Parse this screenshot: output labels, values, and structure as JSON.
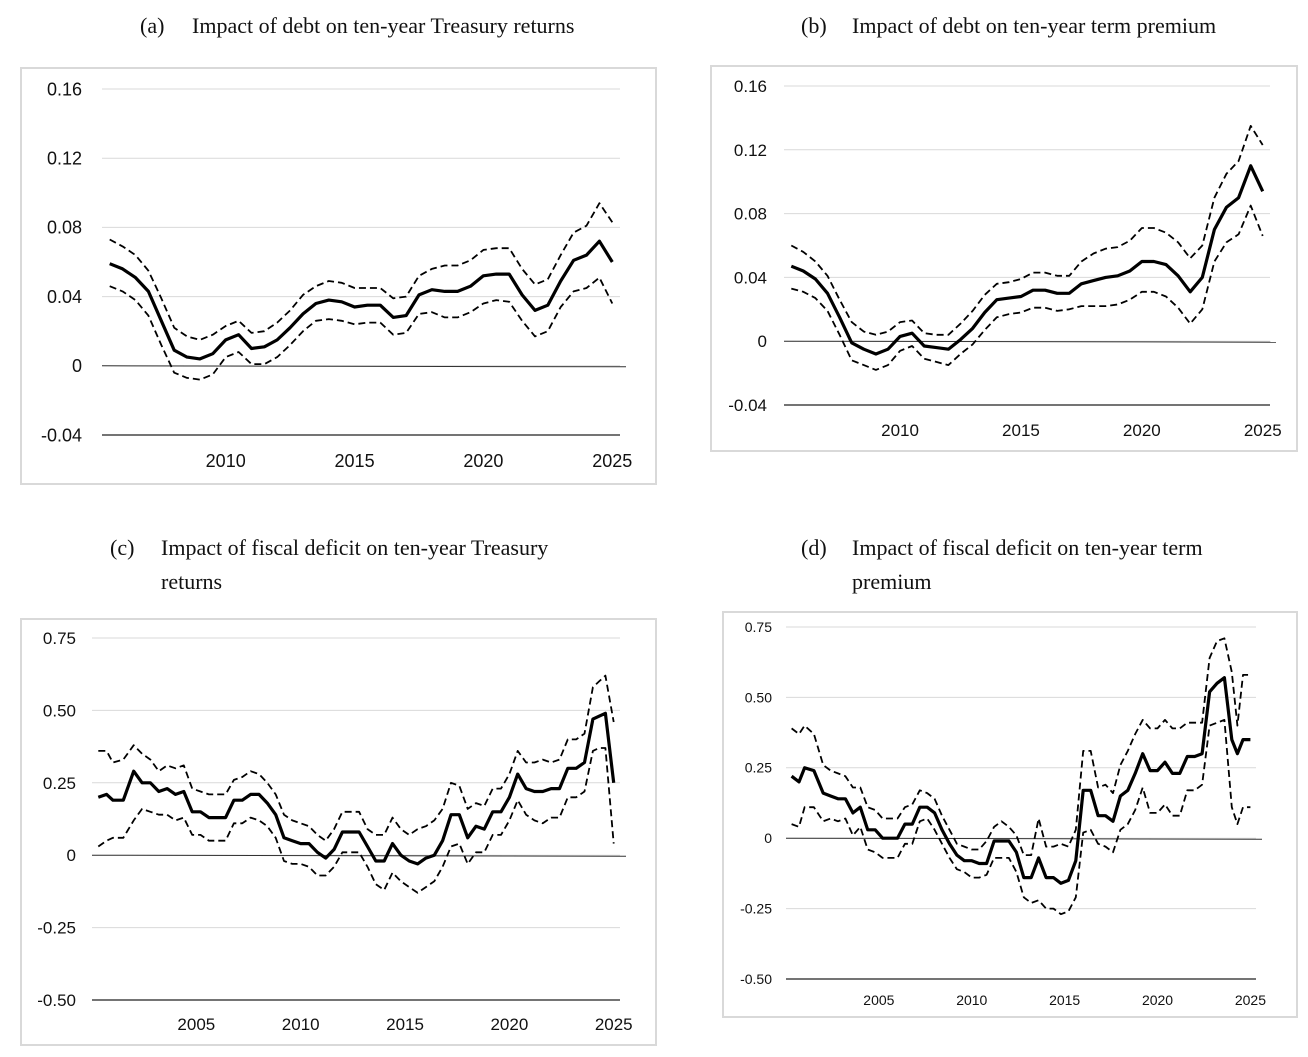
{
  "chart_data": [
    {
      "id": "a",
      "type": "line",
      "label": "(a)",
      "title_lines": [
        "Impact of debt on ten-year Treasury returns"
      ],
      "ylim": [
        -0.04,
        0.16
      ],
      "yticks": [
        -0.04,
        0,
        0.04,
        0.08,
        0.12,
        0.16
      ],
      "ytick_labels": [
        "-0.04",
        "0",
        "0.04",
        "0.08",
        "0.12",
        "0.16"
      ],
      "xlim": [
        2005.2,
        2025.3
      ],
      "xticks": [
        2010,
        2015,
        2020,
        2025
      ],
      "xtick_labels": [
        "2010",
        "2015",
        "2020",
        "2025"
      ],
      "zero_line": true,
      "grid": true,
      "x": [
        2005.5,
        2006.0,
        2006.5,
        2007.0,
        2007.5,
        2008.0,
        2008.5,
        2009.0,
        2009.5,
        2010.0,
        2010.5,
        2011.0,
        2011.5,
        2012.0,
        2012.5,
        2013.0,
        2013.5,
        2014.0,
        2014.5,
        2015.0,
        2015.5,
        2016.0,
        2016.5,
        2017.0,
        2017.5,
        2018.0,
        2018.5,
        2019.0,
        2019.5,
        2020.0,
        2020.5,
        2021.0,
        2021.5,
        2022.0,
        2022.5,
        2023.0,
        2023.5,
        2024.0,
        2024.5,
        2025.0
      ],
      "series": [
        {
          "name": "estimate",
          "style": "solid",
          "values": [
            0.059,
            0.056,
            0.051,
            0.043,
            0.026,
            0.009,
            0.005,
            0.004,
            0.007,
            0.015,
            0.018,
            0.01,
            0.011,
            0.015,
            0.022,
            0.03,
            0.036,
            0.038,
            0.037,
            0.034,
            0.035,
            0.035,
            0.028,
            0.029,
            0.041,
            0.044,
            0.043,
            0.043,
            0.046,
            0.052,
            0.053,
            0.053,
            0.041,
            0.032,
            0.035,
            0.049,
            0.061,
            0.064,
            0.072,
            0.06
          ]
        },
        {
          "name": "upper band",
          "style": "dashed",
          "values": [
            0.073,
            0.069,
            0.064,
            0.055,
            0.039,
            0.022,
            0.017,
            0.015,
            0.018,
            0.023,
            0.026,
            0.019,
            0.02,
            0.025,
            0.032,
            0.041,
            0.046,
            0.049,
            0.048,
            0.045,
            0.045,
            0.045,
            0.039,
            0.04,
            0.052,
            0.056,
            0.058,
            0.058,
            0.061,
            0.067,
            0.068,
            0.068,
            0.056,
            0.047,
            0.05,
            0.064,
            0.077,
            0.081,
            0.094,
            0.083
          ]
        },
        {
          "name": "lower band",
          "style": "dashed",
          "values": [
            0.046,
            0.043,
            0.038,
            0.029,
            0.012,
            -0.004,
            -0.007,
            -0.008,
            -0.005,
            0.005,
            0.008,
            0.001,
            0.001,
            0.005,
            0.012,
            0.02,
            0.026,
            0.027,
            0.026,
            0.024,
            0.025,
            0.025,
            0.018,
            0.019,
            0.03,
            0.031,
            0.028,
            0.028,
            0.031,
            0.036,
            0.038,
            0.037,
            0.026,
            0.017,
            0.02,
            0.034,
            0.043,
            0.045,
            0.051,
            0.036
          ]
        }
      ]
    },
    {
      "id": "b",
      "type": "line",
      "label": "(b)",
      "title_lines": [
        "Impact of debt on ten-year term premium"
      ],
      "ylim": [
        -0.04,
        0.16
      ],
      "yticks": [
        -0.04,
        0,
        0.04,
        0.08,
        0.12,
        0.16
      ],
      "ytick_labels": [
        "-0.04",
        "0",
        "0.04",
        "0.08",
        "0.12",
        "0.16"
      ],
      "xlim": [
        2005.2,
        2025.3
      ],
      "xticks": [
        2010,
        2015,
        2020,
        2025
      ],
      "xtick_labels": [
        "2010",
        "2015",
        "2020",
        "2025"
      ],
      "zero_line": true,
      "grid": true,
      "x": [
        2005.5,
        2006.0,
        2006.5,
        2007.0,
        2007.5,
        2008.0,
        2008.5,
        2009.0,
        2009.5,
        2010.0,
        2010.5,
        2011.0,
        2011.5,
        2012.0,
        2012.5,
        2013.0,
        2013.5,
        2014.0,
        2014.5,
        2015.0,
        2015.5,
        2016.0,
        2016.5,
        2017.0,
        2017.5,
        2018.0,
        2018.5,
        2019.0,
        2019.5,
        2020.0,
        2020.5,
        2021.0,
        2021.5,
        2022.0,
        2022.5,
        2023.0,
        2023.5,
        2024.0,
        2024.5,
        2025.0
      ],
      "series": [
        {
          "name": "estimate",
          "style": "solid",
          "values": [
            0.047,
            0.044,
            0.039,
            0.03,
            0.015,
            -0.001,
            -0.005,
            -0.008,
            -0.005,
            0.003,
            0.005,
            -0.003,
            -0.004,
            -0.005,
            0.001,
            0.008,
            0.018,
            0.026,
            0.027,
            0.028,
            0.032,
            0.032,
            0.03,
            0.03,
            0.036,
            0.038,
            0.04,
            0.041,
            0.044,
            0.05,
            0.05,
            0.048,
            0.041,
            0.031,
            0.04,
            0.07,
            0.084,
            0.09,
            0.11,
            0.094
          ]
        },
        {
          "name": "upper band",
          "style": "dashed",
          "values": [
            0.06,
            0.056,
            0.05,
            0.041,
            0.026,
            0.012,
            0.006,
            0.004,
            0.006,
            0.012,
            0.013,
            0.005,
            0.004,
            0.004,
            0.011,
            0.019,
            0.029,
            0.036,
            0.037,
            0.039,
            0.043,
            0.043,
            0.041,
            0.041,
            0.05,
            0.055,
            0.058,
            0.059,
            0.063,
            0.071,
            0.071,
            0.068,
            0.062,
            0.052,
            0.06,
            0.09,
            0.105,
            0.113,
            0.135,
            0.123
          ]
        },
        {
          "name": "lower band",
          "style": "dashed",
          "values": [
            0.033,
            0.031,
            0.027,
            0.019,
            0.004,
            -0.012,
            -0.015,
            -0.018,
            -0.015,
            -0.006,
            -0.003,
            -0.011,
            -0.013,
            -0.015,
            -0.008,
            -0.002,
            0.007,
            0.015,
            0.017,
            0.018,
            0.021,
            0.021,
            0.019,
            0.02,
            0.022,
            0.022,
            0.022,
            0.023,
            0.026,
            0.031,
            0.031,
            0.028,
            0.021,
            0.011,
            0.02,
            0.05,
            0.062,
            0.067,
            0.085,
            0.066
          ]
        }
      ]
    },
    {
      "id": "c",
      "type": "line",
      "label": "(c)",
      "title_lines": [
        "Impact of fiscal deficit on ten-year Treasury",
        "returns"
      ],
      "ylim": [
        -0.5,
        0.75
      ],
      "yticks": [
        -0.5,
        -0.25,
        0,
        0.25,
        0.5,
        0.75
      ],
      "ytick_labels": [
        "-0.50",
        "-0.25",
        "0",
        "0.25",
        "0.50",
        "0.75"
      ],
      "xlim": [
        2000.0,
        2025.3
      ],
      "xticks": [
        2005,
        2010,
        2015,
        2020,
        2025
      ],
      "xtick_labels": [
        "2005",
        "2010",
        "2015",
        "2020",
        "2025"
      ],
      "zero_line": true,
      "grid": true,
      "x": [
        2000.3,
        2000.7,
        2001.0,
        2001.5,
        2002.0,
        2002.4,
        2002.8,
        2003.2,
        2003.6,
        2004.0,
        2004.4,
        2004.8,
        2005.2,
        2005.6,
        2006.0,
        2006.4,
        2006.8,
        2007.2,
        2007.6,
        2008.0,
        2008.4,
        2008.8,
        2009.2,
        2009.6,
        2010.0,
        2010.4,
        2010.8,
        2011.2,
        2011.6,
        2012.0,
        2012.4,
        2012.8,
        2013.2,
        2013.6,
        2014.0,
        2014.4,
        2014.8,
        2015.2,
        2015.6,
        2016.0,
        2016.4,
        2016.8,
        2017.2,
        2017.6,
        2018.0,
        2018.4,
        2018.8,
        2019.2,
        2019.6,
        2020.0,
        2020.4,
        2020.8,
        2021.2,
        2021.6,
        2022.0,
        2022.4,
        2022.8,
        2023.2,
        2023.6,
        2024.0,
        2024.3,
        2024.6,
        2025.0
      ],
      "series": [
        {
          "name": "estimate",
          "style": "solid",
          "values": [
            0.2,
            0.21,
            0.19,
            0.19,
            0.29,
            0.25,
            0.25,
            0.22,
            0.23,
            0.21,
            0.22,
            0.15,
            0.15,
            0.13,
            0.13,
            0.13,
            0.19,
            0.19,
            0.21,
            0.21,
            0.18,
            0.14,
            0.06,
            0.05,
            0.04,
            0.04,
            0.01,
            -0.01,
            0.02,
            0.08,
            0.08,
            0.08,
            0.03,
            -0.02,
            -0.02,
            0.04,
            0.0,
            -0.02,
            -0.03,
            -0.01,
            0.0,
            0.05,
            0.14,
            0.14,
            0.06,
            0.1,
            0.09,
            0.15,
            0.15,
            0.2,
            0.28,
            0.23,
            0.22,
            0.22,
            0.23,
            0.23,
            0.3,
            0.3,
            0.32,
            0.47,
            0.48,
            0.49,
            0.25
          ]
        },
        {
          "name": "upper band",
          "style": "dashed",
          "values": [
            0.36,
            0.36,
            0.32,
            0.33,
            0.38,
            0.35,
            0.33,
            0.29,
            0.31,
            0.3,
            0.31,
            0.23,
            0.22,
            0.21,
            0.21,
            0.21,
            0.26,
            0.27,
            0.29,
            0.28,
            0.25,
            0.21,
            0.14,
            0.12,
            0.11,
            0.1,
            0.07,
            0.05,
            0.09,
            0.15,
            0.15,
            0.15,
            0.09,
            0.07,
            0.07,
            0.13,
            0.09,
            0.07,
            0.09,
            0.1,
            0.12,
            0.16,
            0.25,
            0.24,
            0.16,
            0.18,
            0.17,
            0.23,
            0.23,
            0.28,
            0.36,
            0.32,
            0.32,
            0.33,
            0.32,
            0.33,
            0.4,
            0.4,
            0.42,
            0.58,
            0.6,
            0.62,
            0.46
          ]
        },
        {
          "name": "lower band",
          "style": "dashed",
          "values": [
            0.03,
            0.05,
            0.06,
            0.06,
            0.12,
            0.16,
            0.15,
            0.14,
            0.14,
            0.12,
            0.13,
            0.07,
            0.07,
            0.05,
            0.05,
            0.05,
            0.11,
            0.11,
            0.13,
            0.12,
            0.1,
            0.06,
            -0.02,
            -0.03,
            -0.03,
            -0.04,
            -0.07,
            -0.07,
            -0.04,
            0.01,
            0.01,
            0.01,
            -0.04,
            -0.1,
            -0.12,
            -0.06,
            -0.09,
            -0.11,
            -0.13,
            -0.11,
            -0.09,
            -0.04,
            0.03,
            0.04,
            -0.03,
            0.01,
            0.01,
            0.07,
            0.07,
            0.12,
            0.19,
            0.14,
            0.12,
            0.11,
            0.13,
            0.13,
            0.2,
            0.2,
            0.22,
            0.36,
            0.37,
            0.37,
            0.04
          ]
        }
      ]
    },
    {
      "id": "d",
      "type": "line",
      "label": "(d)",
      "title_lines": [
        "Impact of fiscal deficit on ten-year term",
        "premium"
      ],
      "ylim": [
        -0.5,
        0.75
      ],
      "yticks": [
        -0.5,
        -0.25,
        0,
        0.25,
        0.5,
        0.75
      ],
      "ytick_labels": [
        "-0.50",
        "-0.25",
        "0",
        "0.25",
        "0.50",
        "0.75"
      ],
      "xlim": [
        2000.0,
        2025.3
      ],
      "xticks": [
        2005,
        2010,
        2015,
        2020,
        2025
      ],
      "xtick_labels": [
        "2005",
        "2010",
        "2015",
        "2020",
        "2025"
      ],
      "zero_line": true,
      "grid": true,
      "x": [
        2000.3,
        2000.7,
        2001.0,
        2001.5,
        2002.0,
        2002.4,
        2002.8,
        2003.2,
        2003.6,
        2004.0,
        2004.4,
        2004.8,
        2005.2,
        2005.6,
        2006.0,
        2006.4,
        2006.8,
        2007.2,
        2007.6,
        2008.0,
        2008.4,
        2008.8,
        2009.2,
        2009.6,
        2010.0,
        2010.4,
        2010.8,
        2011.2,
        2011.6,
        2012.0,
        2012.4,
        2012.8,
        2013.2,
        2013.6,
        2014.0,
        2014.4,
        2014.8,
        2015.2,
        2015.6,
        2016.0,
        2016.4,
        2016.8,
        2017.2,
        2017.6,
        2018.0,
        2018.4,
        2018.8,
        2019.2,
        2019.6,
        2020.0,
        2020.4,
        2020.8,
        2021.2,
        2021.6,
        2022.0,
        2022.4,
        2022.8,
        2023.2,
        2023.6,
        2024.0,
        2024.3,
        2024.6,
        2025.0
      ],
      "series": [
        {
          "name": "estimate",
          "style": "solid",
          "values": [
            0.22,
            0.2,
            0.25,
            0.24,
            0.16,
            0.15,
            0.14,
            0.14,
            0.09,
            0.11,
            0.03,
            0.03,
            0.0,
            0.0,
            0.0,
            0.05,
            0.05,
            0.11,
            0.11,
            0.09,
            0.03,
            -0.02,
            -0.06,
            -0.08,
            -0.08,
            -0.09,
            -0.09,
            -0.01,
            -0.01,
            -0.01,
            -0.05,
            -0.14,
            -0.14,
            -0.07,
            -0.14,
            -0.14,
            -0.16,
            -0.15,
            -0.08,
            0.17,
            0.17,
            0.08,
            0.08,
            0.06,
            0.15,
            0.17,
            0.23,
            0.3,
            0.24,
            0.24,
            0.27,
            0.23,
            0.23,
            0.29,
            0.29,
            0.3,
            0.52,
            0.55,
            0.57,
            0.35,
            0.3,
            0.35,
            0.35
          ]
        },
        {
          "name": "upper band",
          "style": "dashed",
          "values": [
            0.39,
            0.37,
            0.4,
            0.37,
            0.26,
            0.24,
            0.23,
            0.22,
            0.18,
            0.18,
            0.11,
            0.1,
            0.07,
            0.07,
            0.07,
            0.11,
            0.12,
            0.17,
            0.16,
            0.14,
            0.08,
            0.03,
            -0.02,
            -0.03,
            -0.04,
            -0.04,
            -0.01,
            0.04,
            0.06,
            0.04,
            0.01,
            -0.06,
            -0.06,
            0.07,
            -0.03,
            -0.03,
            -0.02,
            -0.03,
            0.03,
            0.31,
            0.31,
            0.18,
            0.19,
            0.16,
            0.26,
            0.31,
            0.37,
            0.42,
            0.39,
            0.39,
            0.42,
            0.39,
            0.39,
            0.41,
            0.41,
            0.41,
            0.64,
            0.7,
            0.71,
            0.59,
            0.4,
            0.58,
            0.58
          ]
        },
        {
          "name": "lower band",
          "style": "dashed",
          "values": [
            0.05,
            0.04,
            0.11,
            0.11,
            0.06,
            0.07,
            0.06,
            0.07,
            0.01,
            0.04,
            -0.04,
            -0.05,
            -0.07,
            -0.07,
            -0.07,
            -0.02,
            -0.02,
            0.06,
            0.07,
            0.03,
            -0.02,
            -0.07,
            -0.11,
            -0.12,
            -0.14,
            -0.14,
            -0.13,
            -0.07,
            -0.07,
            -0.07,
            -0.12,
            -0.21,
            -0.23,
            -0.22,
            -0.25,
            -0.25,
            -0.27,
            -0.26,
            -0.21,
            0.02,
            0.03,
            -0.02,
            -0.03,
            -0.05,
            0.03,
            0.05,
            0.1,
            0.18,
            0.09,
            0.09,
            0.12,
            0.08,
            0.08,
            0.17,
            0.17,
            0.19,
            0.4,
            0.41,
            0.42,
            0.11,
            0.05,
            0.11,
            0.11
          ]
        }
      ]
    }
  ]
}
